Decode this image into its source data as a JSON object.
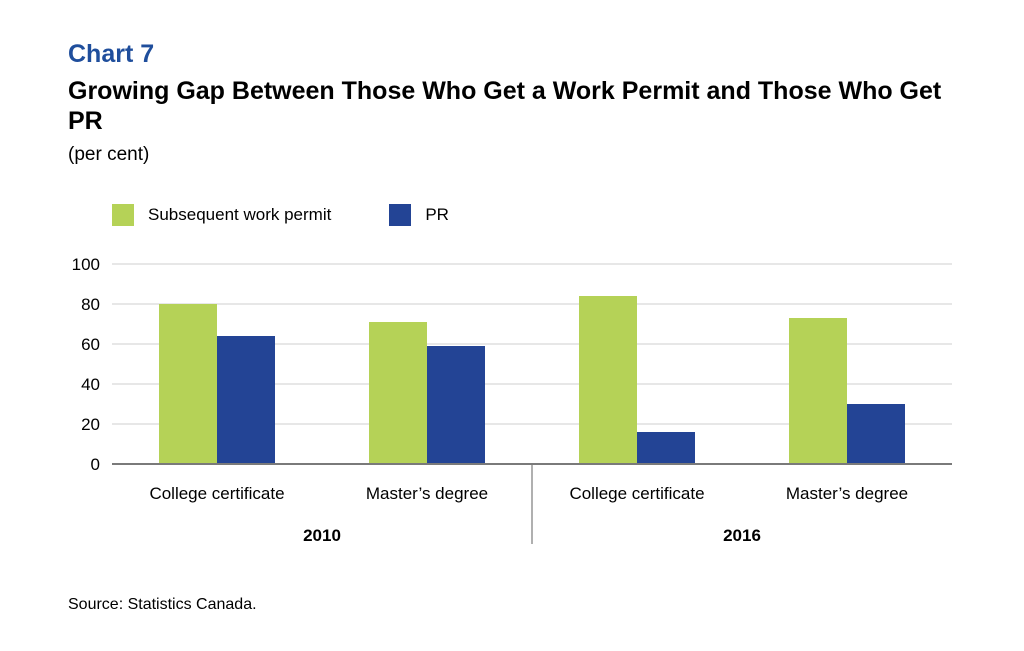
{
  "header": {
    "chart_label": "Chart 7",
    "title": "Growing Gap Between Those Who Get a Work Permit and Those Who Get PR",
    "subtitle": "(per cent)"
  },
  "footer": {
    "source": "Source: Statistics Canada."
  },
  "chart_data": {
    "type": "bar",
    "groups": [
      {
        "label": "2010",
        "categories": [
          "College certificate",
          "Master’s degree"
        ]
      },
      {
        "label": "2016",
        "categories": [
          "College certificate",
          "Master’s degree"
        ]
      }
    ],
    "categories": [
      "College certificate",
      "Master’s degree",
      "College certificate",
      "Master’s degree"
    ],
    "series": [
      {
        "name": "Subsequent work permit",
        "color": "#b5d257",
        "values": [
          80,
          71,
          84,
          73
        ]
      },
      {
        "name": "PR",
        "color": "#234495",
        "values": [
          64,
          59,
          16,
          30
        ]
      }
    ],
    "yticks": [
      "0",
      "20",
      "40",
      "60",
      "80",
      "100"
    ],
    "ylim": [
      0,
      100
    ],
    "grid": true,
    "legend_position": "top-left"
  }
}
